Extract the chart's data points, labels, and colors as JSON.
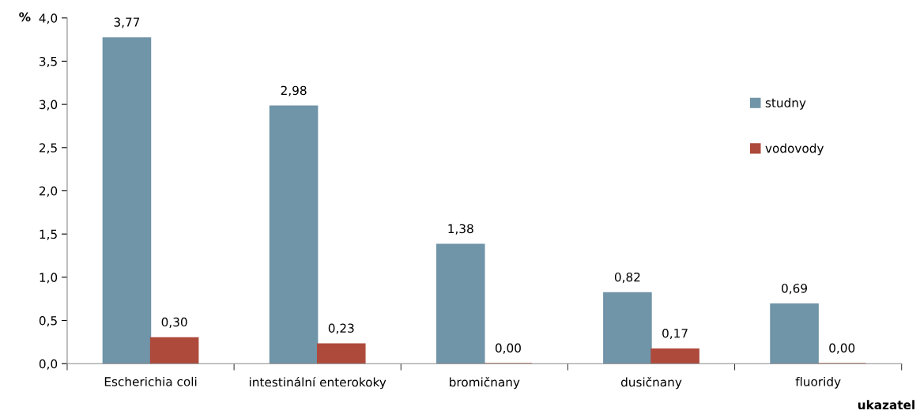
{
  "chart_data": {
    "type": "bar",
    "ylabel": "%",
    "xlabel": "ukazatel",
    "categories": [
      "Escherichia coli",
      "intestinální enterokoky",
      "bromičnany",
      "dusičnany",
      "fluoridy"
    ],
    "series": [
      {
        "name": "studny",
        "color": "#7094a8",
        "values": [
          3.77,
          2.98,
          1.38,
          0.82,
          0.69
        ],
        "value_labels": [
          "3,77",
          "2,98",
          "1,38",
          "0,82",
          "0,69"
        ]
      },
      {
        "name": "vodovody",
        "color": "#ae4a3b",
        "values": [
          0.3,
          0.23,
          0.0,
          0.17,
          0.0
        ],
        "value_labels": [
          "0,30",
          "0,23",
          "0,00",
          "0,17",
          "0,00"
        ]
      }
    ],
    "ylim": [
      0,
      4
    ],
    "yticks": [
      {
        "value": 0,
        "label": "0,0"
      },
      {
        "value": 0.5,
        "label": "0,5"
      },
      {
        "value": 1,
        "label": "1,0"
      },
      {
        "value": 1.5,
        "label": "1,5"
      },
      {
        "value": 2,
        "label": "2,0"
      },
      {
        "value": 2.5,
        "label": "2,5"
      },
      {
        "value": 3,
        "label": "3,0"
      },
      {
        "value": 3.5,
        "label": "3,5"
      },
      {
        "value": 4,
        "label": "4,0"
      }
    ],
    "grid": false,
    "legend": "right"
  }
}
